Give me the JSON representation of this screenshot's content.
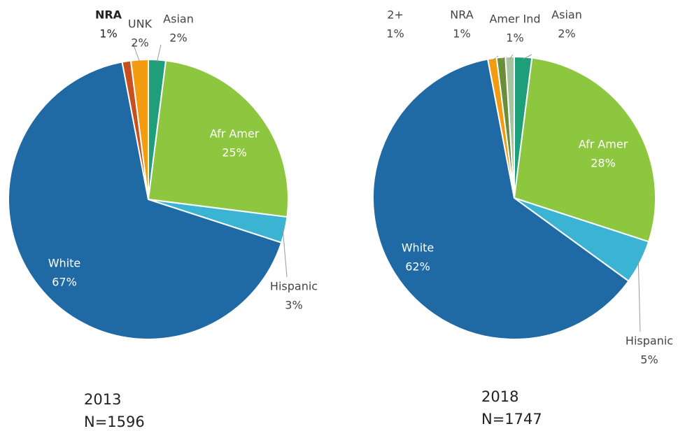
{
  "chart_data": [
    {
      "type": "pie",
      "title": "2013",
      "subtitle": "N=1596",
      "categories": [
        "Asian",
        "Afr Amer",
        "Hispanic",
        "White",
        "NRA",
        "UNK"
      ],
      "values": [
        2,
        25,
        3,
        67,
        1,
        2
      ],
      "value_labels": [
        "2%",
        "25%",
        "3%",
        "67%",
        "1%",
        "2%"
      ],
      "colors": [
        "#1f9e7a",
        "#8dc63f",
        "#3bb3d3",
        "#1f6aa5",
        "#c8501e",
        "#f39c12"
      ]
    },
    {
      "type": "pie",
      "title": "2018",
      "subtitle": "N=1747",
      "categories": [
        "Asian",
        "Afr Amer",
        "Hispanic",
        "White",
        "2+",
        "NRA",
        "Amer Ind"
      ],
      "values": [
        2,
        28,
        5,
        62,
        1,
        1,
        1
      ],
      "value_labels": [
        "2%",
        "28%",
        "5%",
        "62%",
        "1%",
        "1%",
        "1%"
      ],
      "colors": [
        "#1f9e7a",
        "#8dc63f",
        "#3bb3d3",
        "#1f6aa5",
        "#f39c12",
        "#6b8e3a",
        "#a7c4a0"
      ]
    }
  ]
}
